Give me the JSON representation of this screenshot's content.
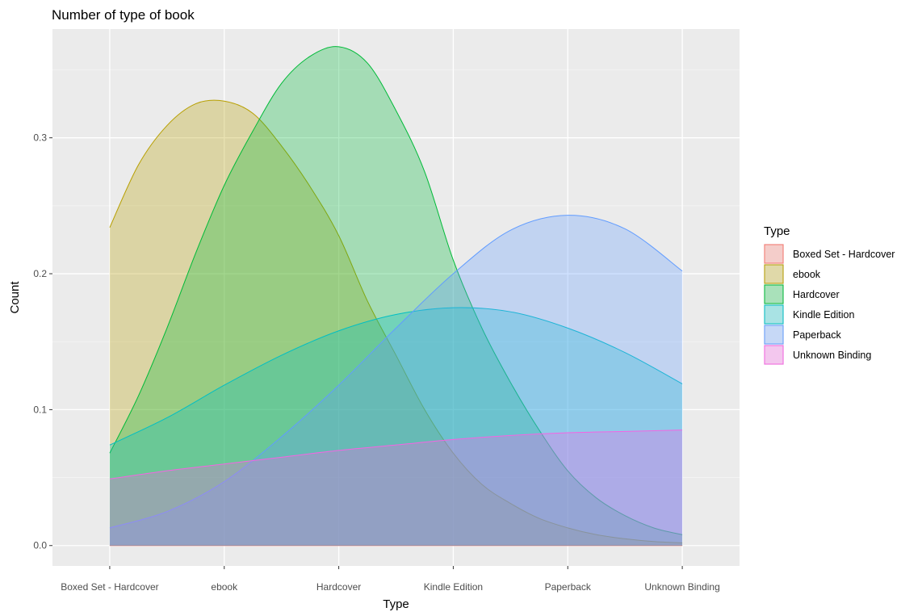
{
  "chart_data": {
    "type": "area",
    "title": "Number of type of book",
    "xlabel": "Type",
    "ylabel": "Count",
    "categories": [
      "Boxed Set - Hardcover",
      "ebook",
      "Hardcover",
      "Kindle Edition",
      "Paperback",
      "Unknown Binding"
    ],
    "x_range": [
      0.5,
      6.5
    ],
    "ylim": [
      -0.015,
      0.38
    ],
    "y_ticks": [
      0.0,
      0.1,
      0.2,
      0.3
    ],
    "y_tick_labels": [
      "0.0",
      "0.1",
      "0.2",
      "0.3"
    ],
    "grid": true,
    "legend": {
      "title": "Type",
      "position": "right"
    },
    "series": [
      {
        "name": "Boxed Set - Hardcover",
        "color": "#F8766D",
        "x": [
          1,
          2,
          3,
          4,
          5,
          6
        ],
        "values": [
          0,
          0,
          0,
          0,
          0,
          0
        ]
      },
      {
        "name": "ebook",
        "color": "#B79F00",
        "x": [
          1,
          1.25,
          1.5,
          1.75,
          2,
          2.25,
          2.5,
          2.75,
          3,
          3.25,
          3.5,
          3.75,
          4,
          4.25,
          4.5,
          4.75,
          5,
          5.25,
          5.5,
          5.75,
          6
        ],
        "values": [
          0.234,
          0.28,
          0.309,
          0.325,
          0.327,
          0.318,
          0.294,
          0.264,
          0.228,
          0.18,
          0.14,
          0.1,
          0.068,
          0.045,
          0.031,
          0.02,
          0.013,
          0.008,
          0.005,
          0.003,
          0.002
        ]
      },
      {
        "name": "Hardcover",
        "color": "#00BA38",
        "x": [
          1,
          1.25,
          1.5,
          1.75,
          2,
          2.25,
          2.5,
          2.75,
          3,
          3.25,
          3.5,
          3.75,
          4,
          4.25,
          4.5,
          4.75,
          5,
          5.25,
          5.5,
          5.75,
          6
        ],
        "values": [
          0.068,
          0.11,
          0.16,
          0.215,
          0.265,
          0.305,
          0.34,
          0.36,
          0.367,
          0.355,
          0.32,
          0.275,
          0.21,
          0.16,
          0.12,
          0.085,
          0.055,
          0.035,
          0.022,
          0.013,
          0.008
        ]
      },
      {
        "name": "Kindle Edition",
        "color": "#00BFC4",
        "x": [
          1,
          1.5,
          2,
          2.5,
          3,
          3.5,
          4,
          4.5,
          5,
          5.5,
          6
        ],
        "values": [
          0.074,
          0.094,
          0.118,
          0.14,
          0.158,
          0.17,
          0.175,
          0.172,
          0.16,
          0.142,
          0.119
        ]
      },
      {
        "name": "Paperback",
        "color": "#619CFF",
        "x": [
          1,
          1.5,
          2,
          2.5,
          3,
          3.5,
          4,
          4.5,
          5,
          5.5,
          6
        ],
        "values": [
          0.013,
          0.025,
          0.047,
          0.08,
          0.118,
          0.16,
          0.2,
          0.232,
          0.243,
          0.233,
          0.202
        ]
      },
      {
        "name": "Unknown Binding",
        "color": "#F564E3",
        "x": [
          1,
          1.5,
          2,
          2.5,
          3,
          3.5,
          4,
          4.5,
          5,
          5.5,
          6
        ],
        "values": [
          0.049,
          0.055,
          0.06,
          0.065,
          0.07,
          0.074,
          0.078,
          0.081,
          0.083,
          0.084,
          0.085
        ]
      }
    ]
  }
}
